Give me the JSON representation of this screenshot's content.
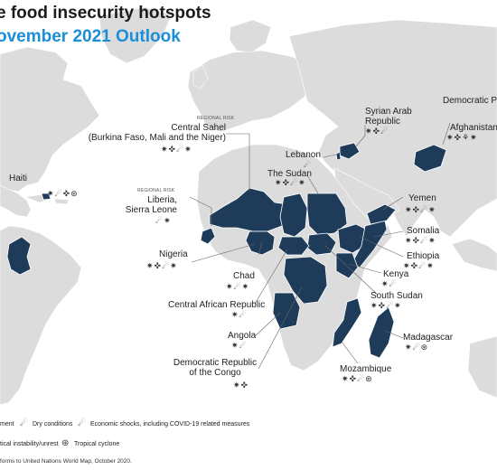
{
  "header": {
    "title": "e food insecurity hotspots",
    "subtitle": "ovember 2021 Outlook"
  },
  "hotspots": [
    {
      "id": "syria",
      "label": "Syrian Arab\nRepublic",
      "icons": "✷✜☄"
    },
    {
      "id": "dprk",
      "label": "Democratic Peo",
      "icons": ""
    },
    {
      "id": "afghanistan",
      "label": "Afghanistan",
      "icons": "✷✜⚘✷"
    },
    {
      "id": "sahel",
      "tag": "REGIONAL RISK",
      "label": "Central Sahel\n(Burkina Faso, Mali and the Niger)",
      "icons": "✷✜☄✷"
    },
    {
      "id": "lebanon",
      "label": "Lebanon",
      "icons": "☄"
    },
    {
      "id": "sudan",
      "label": "The Sudan",
      "icons": "✷✜☄✷"
    },
    {
      "id": "haiti",
      "label": "Haiti",
      "icons": "✷☄✜⊛"
    },
    {
      "id": "liberia",
      "tag": "REGIONAL RISK",
      "label": "Liberia,\nSierra Leone",
      "icons": "☄✷"
    },
    {
      "id": "yemen",
      "label": "Yemen",
      "icons": "✷✜☄✷"
    },
    {
      "id": "somalia",
      "label": "Somalia",
      "icons": "✷✜☄✷"
    },
    {
      "id": "ethiopia",
      "label": "Ethiopia",
      "icons": "✷✜☄✷"
    },
    {
      "id": "nigeria",
      "label": "Nigeria",
      "icons": "✷✜☄✷"
    },
    {
      "id": "chad",
      "label": "Chad",
      "icons": "✷☄✷"
    },
    {
      "id": "kenya",
      "label": "Kenya",
      "icons": "✷☄"
    },
    {
      "id": "south_sudan",
      "label": "South Sudan",
      "icons": "✷✜☄✷"
    },
    {
      "id": "car",
      "label": "Central African Republic",
      "icons": "✷☄"
    },
    {
      "id": "angola",
      "label": "Angola",
      "icons": "✷☄"
    },
    {
      "id": "madagascar",
      "label": "Madagascar",
      "icons": "✷☄⊛"
    },
    {
      "id": "drc",
      "label": "Democratic Republic\nof the Congo",
      "icons": "✷✜"
    },
    {
      "id": "mozambique",
      "label": "Mozambique",
      "icons": "✷✜☄⊛"
    }
  ],
  "legend": {
    "items": [
      {
        "id": "conflict",
        "label": "ment",
        "icon": "✷"
      },
      {
        "id": "dry",
        "label": "Dry conditions",
        "icon": "☄"
      },
      {
        "id": "economic",
        "label": "Economic shocks, including COVID-19 related measures",
        "icon": "☄"
      },
      {
        "id": "political",
        "label": "tical instability/unrest",
        "icon": "✜"
      },
      {
        "id": "cyclone",
        "label": "Tropical cyclone",
        "icon": "⊛"
      }
    ],
    "footnote": "forms to United Nations World Map, October 2020."
  },
  "colors": {
    "land": "#dcdcdc",
    "hotspot": "#1e3c5a",
    "water": "#ffffff",
    "title": "#1b1b1b",
    "subtitle": "#1a8fd8"
  }
}
